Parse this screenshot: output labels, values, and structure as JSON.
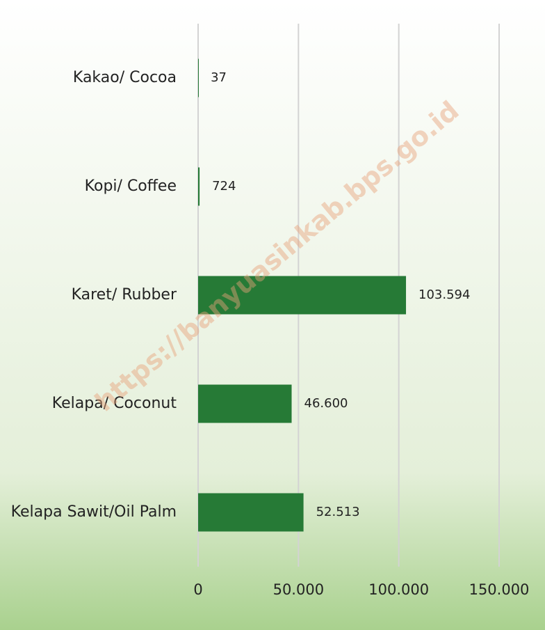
{
  "chart_data": {
    "type": "bar",
    "orientation": "horizontal",
    "categories": [
      "Kakao/ Cocoa",
      "Kopi/ Coffee",
      "Karet/ Rubber",
      "Kelapa/ Coconut",
      "Kelapa Sawit/Oil Palm"
    ],
    "values": [
      37,
      724,
      103594,
      46600,
      52513
    ],
    "value_labels": [
      "37",
      "724",
      "103.594",
      "46.600",
      "52.513"
    ],
    "color": "#267a36",
    "xlim": [
      0,
      150000
    ],
    "xticks": [
      0,
      {
        "value": 50000,
        "label": "50.000"
      },
      {
        "value": 100000,
        "label": "100.000"
      },
      {
        "value": 150000,
        "label": "150.000"
      }
    ],
    "grid": true,
    "annotation": "https://banyuasinkab.bps.go.id"
  }
}
